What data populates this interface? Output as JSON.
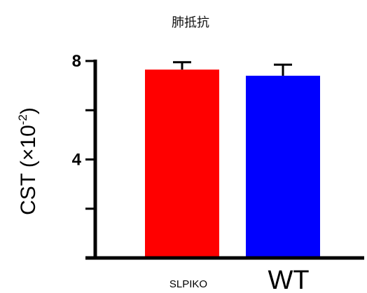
{
  "chart_data": {
    "type": "bar",
    "title": "肺抵抗",
    "ylabel": {
      "main": "CST (×10",
      "superscript": "-2",
      "close": ")"
    },
    "xlabel": "",
    "categories": [
      "SLPIKO",
      "WT"
    ],
    "values": [
      7.65,
      7.4
    ],
    "errors": [
      0.3,
      0.45
    ],
    "ylim": [
      0,
      8
    ],
    "yticks": [
      {
        "value": 0,
        "label": ""
      },
      {
        "value": 2,
        "label": ""
      },
      {
        "value": 4,
        "label": "4"
      },
      {
        "value": 6,
        "label": ""
      },
      {
        "value": 8,
        "label": "8"
      }
    ],
    "colors": [
      "#ff0000",
      "#0000ff"
    ],
    "grid": false,
    "legend": "none"
  }
}
